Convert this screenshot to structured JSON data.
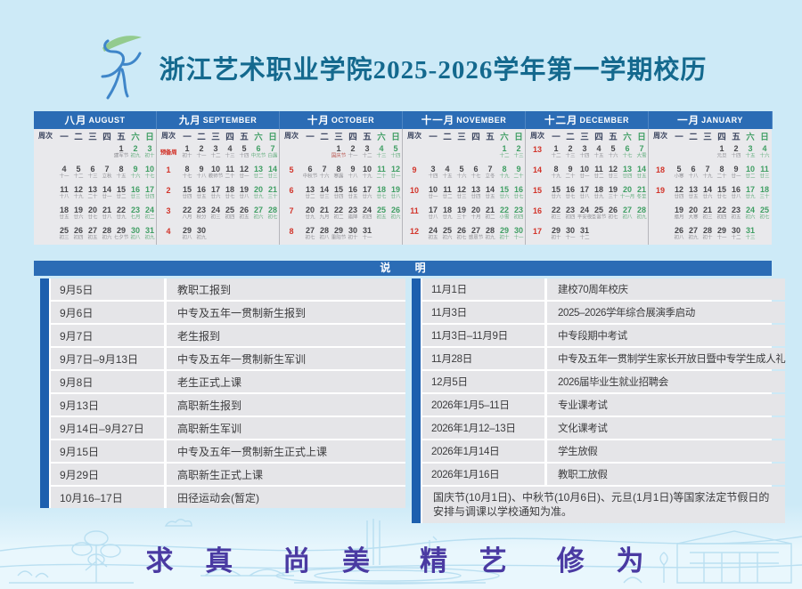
{
  "header": {
    "title": "浙江艺术职业学院2025-2026学年第一学期校历"
  },
  "colors": {
    "background": "#cdeaf7",
    "bar_blue": "#2b6cb5",
    "sidebar_blue": "#1d5fae",
    "title_teal": "#14698e",
    "week_number_red": "#d2342a",
    "weekend_green": "#3f9e63",
    "motto_purple": "#4a3aa2"
  },
  "calendar": {
    "weekday_headers": [
      "周次",
      "一",
      "二",
      "三",
      "四",
      "五",
      "六",
      "日"
    ],
    "months": [
      {
        "cn": "八月",
        "en": "AUGUST",
        "weeks": [
          {
            "w": "",
            "d": [
              null,
              null,
              null,
              null,
              [
                1,
                "建军节"
              ],
              [
                2,
                "初九"
              ],
              [
                3,
                "初十"
              ]
            ]
          },
          {
            "w": "",
            "d": [
              [
                4,
                "十一"
              ],
              [
                5,
                "十二"
              ],
              [
                6,
                "十三"
              ],
              [
                7,
                "立秋"
              ],
              [
                8,
                "十五"
              ],
              [
                9,
                "十六"
              ],
              [
                10,
                "十七"
              ]
            ]
          },
          {
            "w": "",
            "d": [
              [
                11,
                "十八"
              ],
              [
                12,
                "十九"
              ],
              [
                13,
                "二十"
              ],
              [
                14,
                "廿一"
              ],
              [
                15,
                "廿二"
              ],
              [
                16,
                "廿三"
              ],
              [
                17,
                "廿四"
              ]
            ]
          },
          {
            "w": "",
            "d": [
              [
                18,
                "廿五"
              ],
              [
                19,
                "廿六"
              ],
              [
                20,
                "廿七"
              ],
              [
                21,
                "廿八"
              ],
              [
                22,
                "廿九"
              ],
              [
                23,
                "七月"
              ],
              [
                24,
                "初二"
              ]
            ]
          },
          {
            "w": "",
            "d": [
              [
                25,
                "初三"
              ],
              [
                26,
                "初四"
              ],
              [
                27,
                "初五"
              ],
              [
                28,
                "初六"
              ],
              [
                29,
                "七夕节"
              ],
              [
                30,
                "初八"
              ],
              [
                31,
                "初九"
              ]
            ]
          }
        ]
      },
      {
        "cn": "九月",
        "en": "SEPTEMBER",
        "weeks": [
          {
            "w": "预备周",
            "d": [
              [
                1,
                "初十"
              ],
              [
                2,
                "十一"
              ],
              [
                3,
                "十二"
              ],
              [
                4,
                "十三"
              ],
              [
                5,
                "十四"
              ],
              [
                6,
                "中元节"
              ],
              [
                7,
                "白露"
              ]
            ]
          },
          {
            "w": "1",
            "d": [
              [
                8,
                "十七"
              ],
              [
                9,
                "十八"
              ],
              [
                10,
                "教师节"
              ],
              [
                11,
                "二十"
              ],
              [
                12,
                "廿一"
              ],
              [
                13,
                "廿二"
              ],
              [
                14,
                "廿三"
              ]
            ]
          },
          {
            "w": "2",
            "d": [
              [
                15,
                "廿四"
              ],
              [
                16,
                "廿五"
              ],
              [
                17,
                "廿六"
              ],
              [
                18,
                "廿七"
              ],
              [
                19,
                "廿八"
              ],
              [
                20,
                "廿九"
              ],
              [
                21,
                "三十"
              ]
            ]
          },
          {
            "w": "3",
            "d": [
              [
                22,
                "八月"
              ],
              [
                23,
                "秋分"
              ],
              [
                24,
                "初三"
              ],
              [
                25,
                "初四"
              ],
              [
                26,
                "初五"
              ],
              [
                27,
                "初六"
              ],
              [
                28,
                "初七"
              ]
            ]
          },
          {
            "w": "4",
            "d": [
              [
                29,
                "初八"
              ],
              [
                30,
                "初九"
              ],
              null,
              null,
              null,
              null,
              null
            ]
          }
        ]
      },
      {
        "cn": "十月",
        "en": "OCTOBER",
        "weeks": [
          {
            "w": "",
            "d": [
              null,
              null,
              [
                1,
                "国庆节",
                1
              ],
              [
                2,
                "十一"
              ],
              [
                3,
                "十二"
              ],
              [
                4,
                "十三"
              ],
              [
                5,
                "十四"
              ]
            ]
          },
          {
            "w": "5",
            "d": [
              [
                6,
                "中秋节"
              ],
              [
                7,
                "十六"
              ],
              [
                8,
                "寒露"
              ],
              [
                9,
                "十八"
              ],
              [
                10,
                "十九"
              ],
              [
                11,
                "二十"
              ],
              [
                12,
                "廿一"
              ]
            ]
          },
          {
            "w": "6",
            "d": [
              [
                13,
                "廿二"
              ],
              [
                14,
                "廿三"
              ],
              [
                15,
                "廿四"
              ],
              [
                16,
                "廿五"
              ],
              [
                17,
                "廿六"
              ],
              [
                18,
                "廿七"
              ],
              [
                19,
                "廿八"
              ]
            ]
          },
          {
            "w": "7",
            "d": [
              [
                20,
                "廿九"
              ],
              [
                21,
                "九月"
              ],
              [
                22,
                "初二"
              ],
              [
                23,
                "霜降"
              ],
              [
                24,
                "初四"
              ],
              [
                25,
                "初五"
              ],
              [
                26,
                "初六"
              ]
            ]
          },
          {
            "w": "8",
            "d": [
              [
                27,
                "初七"
              ],
              [
                28,
                "初八"
              ],
              [
                29,
                "重阳节"
              ],
              [
                30,
                "初十"
              ],
              [
                31,
                "十一"
              ],
              null,
              null
            ]
          }
        ]
      },
      {
        "cn": "十一月",
        "en": "NOVEMBER",
        "weeks": [
          {
            "w": "",
            "d": [
              null,
              null,
              null,
              null,
              null,
              [
                1,
                "十二"
              ],
              [
                2,
                "十三"
              ]
            ]
          },
          {
            "w": "9",
            "d": [
              [
                3,
                "十四"
              ],
              [
                4,
                "十五"
              ],
              [
                5,
                "十六"
              ],
              [
                6,
                "十七"
              ],
              [
                7,
                "立冬"
              ],
              [
                8,
                "十九"
              ],
              [
                9,
                "二十"
              ]
            ]
          },
          {
            "w": "10",
            "d": [
              [
                10,
                "廿一"
              ],
              [
                11,
                "廿二"
              ],
              [
                12,
                "廿三"
              ],
              [
                13,
                "廿四"
              ],
              [
                14,
                "廿五"
              ],
              [
                15,
                "廿六"
              ],
              [
                16,
                "廿七"
              ]
            ]
          },
          {
            "w": "11",
            "d": [
              [
                17,
                "廿八"
              ],
              [
                18,
                "廿九"
              ],
              [
                19,
                "三十"
              ],
              [
                20,
                "十月"
              ],
              [
                21,
                "初二"
              ],
              [
                22,
                "小雪"
              ],
              [
                23,
                "初四"
              ]
            ]
          },
          {
            "w": "12",
            "d": [
              [
                24,
                "初五"
              ],
              [
                25,
                "初六"
              ],
              [
                26,
                "初七"
              ],
              [
                27,
                "感恩节"
              ],
              [
                28,
                "初九"
              ],
              [
                29,
                "初十"
              ],
              [
                30,
                "十一"
              ]
            ]
          }
        ]
      },
      {
        "cn": "十二月",
        "en": "DECEMBER",
        "weeks": [
          {
            "w": "13",
            "d": [
              [
                1,
                "十二"
              ],
              [
                2,
                "十三"
              ],
              [
                3,
                "十四"
              ],
              [
                4,
                "十五"
              ],
              [
                5,
                "十六"
              ],
              [
                6,
                "十七"
              ],
              [
                7,
                "大雪"
              ]
            ]
          },
          {
            "w": "14",
            "d": [
              [
                8,
                "十九"
              ],
              [
                9,
                "二十"
              ],
              [
                10,
                "廿一"
              ],
              [
                11,
                "廿二"
              ],
              [
                12,
                "廿三"
              ],
              [
                13,
                "廿四"
              ],
              [
                14,
                "廿五"
              ]
            ]
          },
          {
            "w": "15",
            "d": [
              [
                15,
                "廿六"
              ],
              [
                16,
                "廿七"
              ],
              [
                17,
                "廿八"
              ],
              [
                18,
                "廿九"
              ],
              [
                19,
                "三十"
              ],
              [
                20,
                "十一月"
              ],
              [
                21,
                "冬至"
              ]
            ]
          },
          {
            "w": "16",
            "d": [
              [
                22,
                "初三"
              ],
              [
                23,
                "初四"
              ],
              [
                24,
                "平安夜"
              ],
              [
                25,
                "圣诞节"
              ],
              [
                26,
                "初七"
              ],
              [
                27,
                "初八"
              ],
              [
                28,
                "初九"
              ]
            ]
          },
          {
            "w": "17",
            "d": [
              [
                29,
                "初十"
              ],
              [
                30,
                "十一"
              ],
              [
                31,
                "十二"
              ],
              null,
              null,
              null,
              null
            ]
          }
        ]
      },
      {
        "cn": "一月",
        "en": "JANUARY",
        "weeks": [
          {
            "w": "",
            "d": [
              null,
              null,
              null,
              [
                1,
                "元旦"
              ],
              [
                2,
                "十四"
              ],
              [
                3,
                "十五"
              ],
              [
                4,
                "十六"
              ]
            ]
          },
          {
            "w": "18",
            "d": [
              [
                5,
                "小寒"
              ],
              [
                6,
                "十八"
              ],
              [
                7,
                "十九"
              ],
              [
                8,
                "二十"
              ],
              [
                9,
                "廿一"
              ],
              [
                10,
                "廿二"
              ],
              [
                11,
                "廿三"
              ]
            ]
          },
          {
            "w": "19",
            "d": [
              [
                12,
                "廿四"
              ],
              [
                13,
                "廿五"
              ],
              [
                14,
                "廿六"
              ],
              [
                15,
                "廿七"
              ],
              [
                16,
                "廿八"
              ],
              [
                17,
                "廿九"
              ],
              [
                18,
                "三十"
              ]
            ]
          },
          {
            "w": "",
            "d": [
              [
                19,
                "腊月"
              ],
              [
                20,
                "大寒"
              ],
              [
                21,
                "初三"
              ],
              [
                22,
                "初四"
              ],
              [
                23,
                "初五"
              ],
              [
                24,
                "初六"
              ],
              [
                25,
                "初七"
              ]
            ]
          },
          {
            "w": "",
            "d": [
              [
                26,
                "初八"
              ],
              [
                27,
                "初九"
              ],
              [
                28,
                "初十"
              ],
              [
                29,
                "十一"
              ],
              [
                30,
                "十二"
              ],
              [
                31,
                "十三"
              ]
            ]
          }
        ]
      }
    ]
  },
  "notes": {
    "header_label": "说 明",
    "left": [
      {
        "date": "9月5日",
        "event": "教职工报到"
      },
      {
        "date": "9月6日",
        "event": "中专及五年一贯制新生报到"
      },
      {
        "date": "9月7日",
        "event": "老生报到"
      },
      {
        "date": "9月7日–9月13日",
        "event": "中专及五年一贯制新生军训"
      },
      {
        "date": "9月8日",
        "event": "老生正式上课"
      },
      {
        "date": "9月13日",
        "event": "高职新生报到"
      },
      {
        "date": "9月14日–9月27日",
        "event": "高职新生军训"
      },
      {
        "date": "9月15日",
        "event": "中专及五年一贯制新生正式上课"
      },
      {
        "date": "9月29日",
        "event": "高职新生正式上课"
      },
      {
        "date": "10月16–17日",
        "event": "田径运动会(暂定)"
      }
    ],
    "right": [
      {
        "date": "11月1日",
        "event": "建校70周年校庆"
      },
      {
        "date": "11月3日",
        "event": "2025–2026学年综合展演季启动"
      },
      {
        "date": "11月3日–11月9日",
        "event": "中专段期中考试"
      },
      {
        "date": "11月28日",
        "event": "中专及五年一贯制学生家长开放日暨中专学生成人礼"
      },
      {
        "date": "12月5日",
        "event": "2026届毕业生就业招聘会"
      },
      {
        "date": "2026年1月5–11日",
        "event": "专业课考试"
      },
      {
        "date": "2026年1月12–13日",
        "event": "文化课考试"
      },
      {
        "date": "2026年1月14日",
        "event": "学生放假"
      },
      {
        "date": "2026年1月16日",
        "event": "教职工放假"
      }
    ],
    "footnote": "国庆节(10月1日)、中秋节(10月6日)、元旦(1月1日)等国家法定节假日的安排与调课以学校通知为准。"
  },
  "motto": {
    "words": [
      "求 真",
      "尚 美",
      "精 艺",
      "修 为"
    ]
  }
}
